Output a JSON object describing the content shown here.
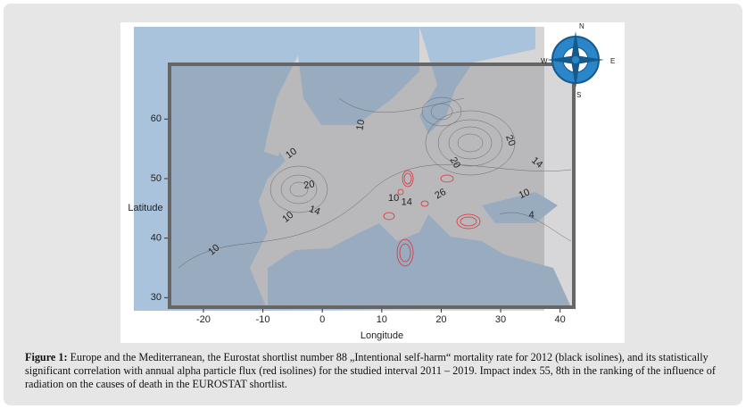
{
  "figure": {
    "xlabel": "Longitude",
    "ylabel": "Latitude",
    "xlim": [
      -25.7,
      42.3
    ],
    "ylim": [
      28.4,
      69.2
    ],
    "xticks": [
      -20,
      -10,
      0,
      10,
      20,
      30,
      40
    ],
    "yticks": [
      30,
      40,
      50,
      60
    ],
    "compass": [
      "N",
      "E",
      "S",
      "W"
    ],
    "contour_labels": [
      {
        "value": 10,
        "lon": 6.5,
        "lat": 59.0,
        "angle": -80
      },
      {
        "value": 10,
        "lon": -5.2,
        "lat": 54.2,
        "angle": -35
      },
      {
        "value": 20,
        "lon": -2.2,
        "lat": 48.9,
        "angle": -10
      },
      {
        "value": 14,
        "lon": -1.3,
        "lat": 44.6,
        "angle": 20
      },
      {
        "value": 10,
        "lon": -5.75,
        "lat": 43.5,
        "angle": -40
      },
      {
        "value": 10,
        "lon": -18.2,
        "lat": 38.0,
        "angle": -40
      },
      {
        "value": 10,
        "lon": 12.0,
        "lat": 46.65,
        "angle": 0
      },
      {
        "value": 14,
        "lon": 14.2,
        "lat": 46.0,
        "angle": 0
      },
      {
        "value": 26,
        "lon": 19.9,
        "lat": 47.4,
        "angle": -30
      },
      {
        "value": 20,
        "lon": 22.3,
        "lat": 52.65,
        "angle": 60
      },
      {
        "value": 20,
        "lon": 31.6,
        "lat": 56.4,
        "angle": 70
      },
      {
        "value": 14,
        "lon": 36.1,
        "lat": 52.65,
        "angle": 40
      },
      {
        "value": 10,
        "lon": 34.0,
        "lat": 47.4,
        "angle": -25
      },
      {
        "value": 4,
        "lon": 35.2,
        "lat": 43.8,
        "angle": 0
      }
    ]
  },
  "caption": {
    "label": "Figure 1:",
    "text": "Europe and the Mediterranean, the Eurostat shortlist number 88 „Intentional self-harm“ mortality rate for 2012 (black isolines), and its statistically significant correlation with annual alpha particle flux (red isolines) for the studied interval 2011 – 2019. Impact index 55, 8th in the ranking of the influence of radiation on the causes of death in the EUROSTAT shortlist."
  }
}
